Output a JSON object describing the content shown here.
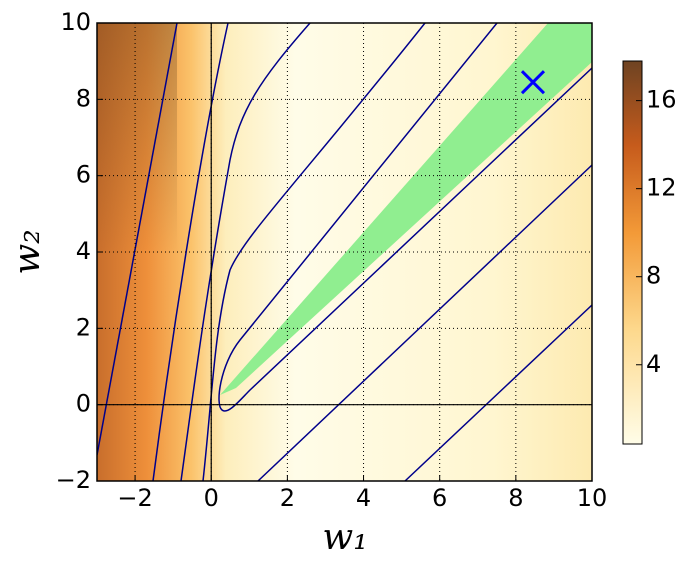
{
  "chart_data": {
    "type": "contour",
    "xlabel": "w₁",
    "ylabel": "w₂",
    "xlim": [
      -3,
      10
    ],
    "ylim": [
      -2,
      10
    ],
    "xticks": [
      {
        "value": -2,
        "label": "−2"
      },
      0,
      2,
      4,
      6,
      8,
      10
    ],
    "yticks": [
      {
        "value": -2,
        "label": "−2"
      },
      0,
      2,
      4,
      6,
      8,
      10
    ],
    "grid": true,
    "colorbar": {
      "lim": [
        0.4,
        17.8
      ],
      "ticks": [
        4,
        8,
        12,
        16
      ]
    },
    "marker": {
      "x": 8.45,
      "y": 8.45,
      "color": "#0000ff"
    }
  }
}
